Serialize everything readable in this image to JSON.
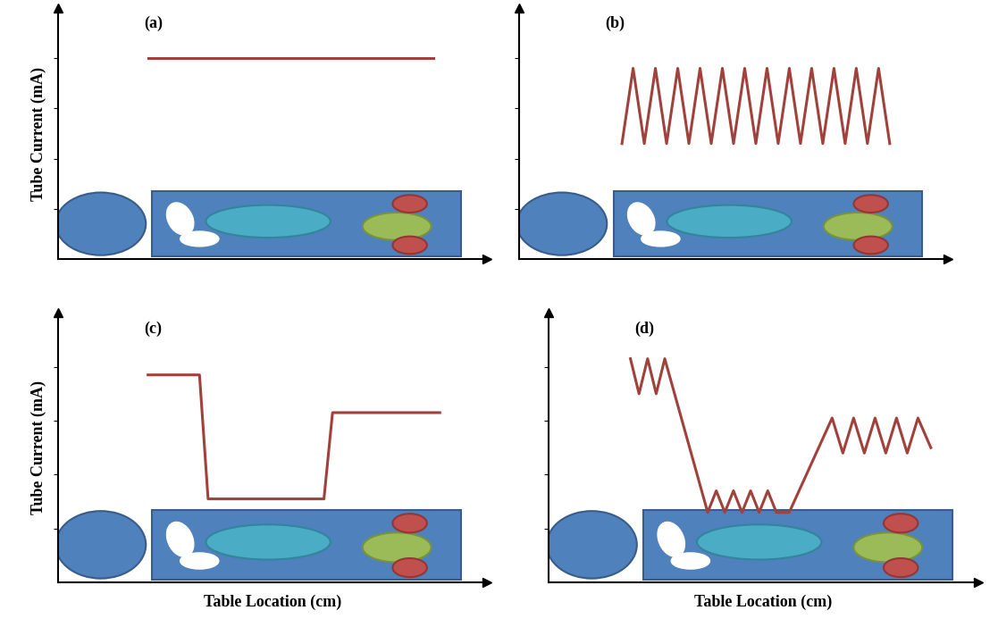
{
  "chart_data": [
    {
      "type": "line",
      "title": "(a)",
      "y_label": "Tube Current (mA)",
      "color": "#a0413c",
      "x": [
        2.1,
        8.75
      ],
      "values": [
        8.0,
        8.0
      ],
      "xlim": [
        0,
        10
      ],
      "ylim": [
        0,
        10
      ],
      "xticks": [],
      "yticks": [
        2,
        4,
        6,
        8
      ],
      "tick_labels": false
    },
    {
      "type": "line",
      "title": "(b)",
      "color": "#a0413c",
      "x": [
        2.4,
        2.66,
        2.92,
        3.18,
        3.44,
        3.7,
        3.96,
        4.22,
        4.48,
        4.74,
        5.0,
        5.26,
        5.52,
        5.78,
        6.04,
        6.3,
        6.56,
        6.82,
        7.08,
        7.34,
        7.6,
        7.86,
        8.12,
        8.38,
        8.64
      ],
      "values": [
        4.6,
        7.6,
        4.6,
        7.6,
        4.6,
        7.6,
        4.6,
        7.6,
        4.6,
        7.6,
        4.6,
        7.6,
        4.6,
        7.6,
        4.6,
        7.6,
        4.6,
        7.6,
        4.6,
        7.6,
        4.6,
        7.6,
        4.6,
        7.6,
        4.6
      ],
      "xlim": [
        0,
        10
      ],
      "ylim": [
        0,
        10
      ],
      "xticks": [],
      "yticks": [
        2,
        4,
        6,
        8
      ],
      "tick_labels": false
    },
    {
      "type": "line",
      "title": "(c)",
      "y_label": "Tube Current (mA)",
      "x_label": "Table Location (cm)",
      "color": "#a0413c",
      "x": [
        2.1,
        3.3,
        3.5,
        6.2,
        6.4,
        8.9
      ],
      "values": [
        7.7,
        7.7,
        3.1,
        3.1,
        6.3,
        6.3
      ],
      "xlim": [
        0,
        10
      ],
      "ylim": [
        0,
        10
      ],
      "xticks": [],
      "yticks": [
        2,
        4,
        6,
        8
      ],
      "tick_labels": false
    },
    {
      "type": "line",
      "title": "(d)",
      "x_label": "Table Location (cm)",
      "color": "#a0413c",
      "x": [
        1.9,
        2.1,
        2.3,
        2.5,
        2.7,
        3.7,
        3.9,
        4.1,
        4.3,
        4.5,
        4.7,
        4.9,
        5.1,
        5.3,
        5.6,
        6.6,
        6.85,
        7.1,
        7.35,
        7.6,
        7.85,
        8.1,
        8.35,
        8.6,
        8.9
      ],
      "values": [
        8.3,
        7.0,
        8.3,
        7.0,
        8.3,
        2.6,
        3.4,
        2.6,
        3.4,
        2.6,
        3.4,
        2.6,
        3.4,
        2.6,
        2.6,
        6.1,
        4.8,
        6.1,
        4.8,
        6.1,
        4.8,
        6.1,
        4.8,
        6.1,
        5.0
      ],
      "xlim": [
        0,
        10
      ],
      "ylim": [
        0,
        10
      ],
      "xticks": [],
      "yticks": [
        2,
        4,
        6,
        8
      ],
      "tick_labels": false
    }
  ]
}
